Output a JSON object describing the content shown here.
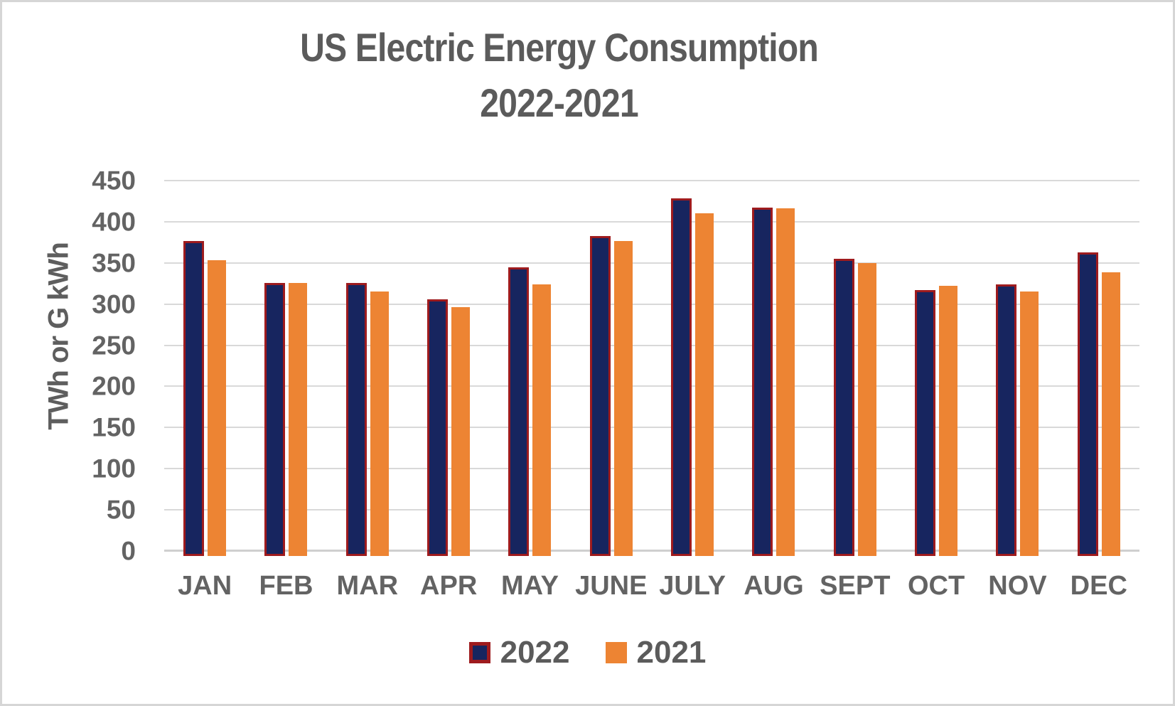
{
  "title": "US Electric Energy Consumption",
  "subtitle": "2022-2021",
  "chart_data": {
    "type": "bar",
    "title": "US Electric Energy Consumption 2022-2021",
    "xlabel": "",
    "ylabel": "TWh or G kWh",
    "ylim": [
      0,
      450
    ],
    "yticks": [
      0,
      50,
      100,
      150,
      200,
      250,
      300,
      350,
      400,
      450
    ],
    "grid": true,
    "legend_position": "bottom",
    "categories": [
      "JAN",
      "FEB",
      "MAR",
      "APR",
      "MAY",
      "JUNE",
      "JULY",
      "AUG",
      "SEPT",
      "OCT",
      "NOV",
      "DEC"
    ],
    "series": [
      {
        "name": "2022",
        "fill_color": "#17255f",
        "outline_color": "#9e1b1e",
        "values": [
          377,
          326,
          326,
          306,
          345,
          383,
          428,
          417,
          355,
          317,
          324,
          363
        ]
      },
      {
        "name": "2021",
        "fill_color": "#ed8433",
        "outline_color": null,
        "values": [
          353,
          326,
          315,
          296,
          324,
          377,
          410,
          416,
          350,
          322,
          315,
          339
        ]
      }
    ]
  },
  "colors": {
    "series_2022_fill": "#17255f",
    "series_2022_outline": "#9e1b1e",
    "series_2021_fill": "#ed8433",
    "text_gray": "#5b5b5b",
    "gridline": "#d9d9d9",
    "canvas_border": "#d6d6d6"
  }
}
